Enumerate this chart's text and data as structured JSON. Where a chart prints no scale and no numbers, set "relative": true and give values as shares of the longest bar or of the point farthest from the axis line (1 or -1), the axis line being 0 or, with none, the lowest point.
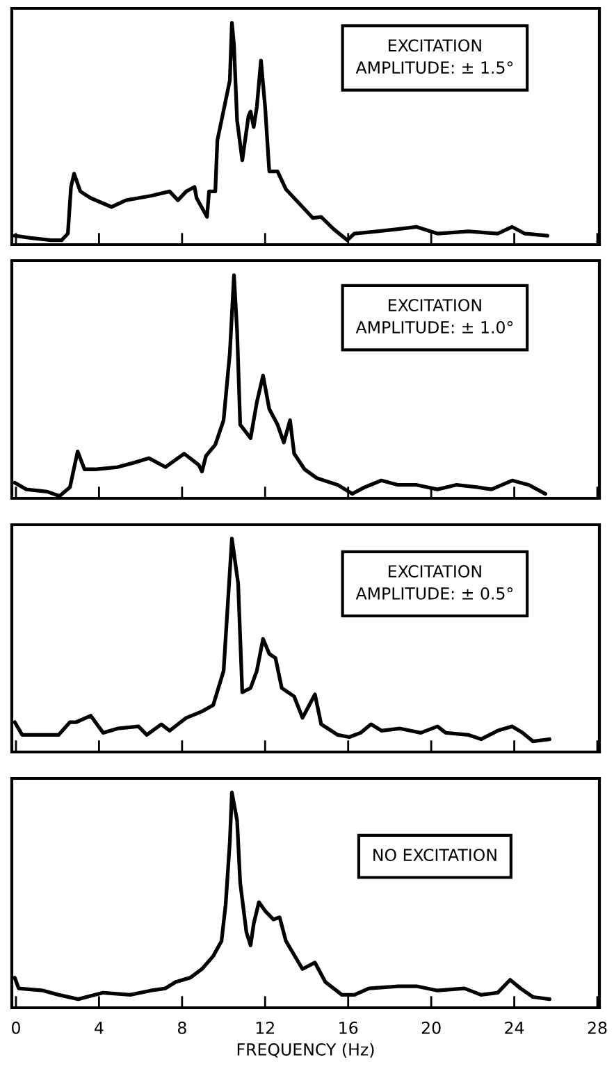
{
  "chart_data": [
    {
      "type": "line",
      "relative": true,
      "xlim": [
        -0.2,
        28.1
      ],
      "xticks": [
        0,
        4,
        8,
        12,
        16,
        20,
        24,
        28
      ],
      "tick_labels": false,
      "annotations": [
        "EXCITATION\nAMPLITUDE: ± 1.5°"
      ],
      "series": [
        {
          "color": "#000000",
          "x": [
            -0.06,
            0.7,
            1.7,
            2.2,
            2.5,
            2.65,
            2.8,
            3.1,
            3.6,
            4.6,
            5.3,
            6.5,
            7.4,
            7.8,
            8.2,
            8.6,
            8.7,
            9.2,
            9.3,
            9.6,
            9.7,
            10.1,
            10.3,
            10.4,
            10.5,
            10.65,
            10.9,
            11.2,
            11.3,
            11.45,
            11.6,
            11.8,
            12.0,
            12.2,
            12.6,
            13.0,
            13.8,
            14.3,
            14.7,
            15.3,
            15.96,
            16.3,
            17.4,
            18.4,
            19.3,
            20.3,
            21.8,
            23.2,
            23.9,
            24.5,
            25.6
          ],
          "values": [
            0.04,
            0.03,
            0.02,
            0.02,
            0.05,
            0.26,
            0.32,
            0.24,
            0.21,
            0.17,
            0.2,
            0.22,
            0.24,
            0.2,
            0.24,
            0.26,
            0.21,
            0.125,
            0.24,
            0.24,
            0.47,
            0.65,
            0.74,
            1.0,
            0.9,
            0.56,
            0.38,
            0.58,
            0.6,
            0.53,
            0.62,
            0.83,
            0.62,
            0.33,
            0.33,
            0.25,
            0.17,
            0.12,
            0.125,
            0.07,
            0.02,
            0.05,
            0.06,
            0.07,
            0.08,
            0.05,
            0.06,
            0.05,
            0.08,
            0.05,
            0.04
          ]
        }
      ]
    },
    {
      "type": "line",
      "relative": true,
      "xlim": [
        -0.2,
        28.1
      ],
      "xticks": [
        0,
        4,
        8,
        12,
        16,
        20,
        24,
        28
      ],
      "tick_labels": false,
      "annotations": [
        "EXCITATION\nAMPLITUDE: ± 1.0°"
      ],
      "series": [
        {
          "color": "#000000",
          "x": [
            -0.06,
            0.5,
            1.5,
            2.1,
            2.6,
            2.97,
            3.3,
            3.8,
            4.9,
            5.7,
            6.4,
            7.2,
            8.1,
            8.8,
            8.96,
            9.15,
            9.6,
            10.0,
            10.3,
            10.5,
            10.65,
            10.8,
            11.3,
            11.6,
            11.9,
            12.2,
            12.6,
            12.9,
            13.2,
            13.4,
            13.9,
            14.5,
            15.5,
            16.2,
            16.8,
            17.6,
            18.4,
            19.3,
            20.3,
            21.2,
            22.2,
            22.9,
            23.9,
            24.7,
            25.5
          ],
          "values": [
            0.07,
            0.04,
            0.03,
            0.01,
            0.05,
            0.21,
            0.13,
            0.13,
            0.14,
            0.16,
            0.18,
            0.14,
            0.2,
            0.15,
            0.12,
            0.19,
            0.24,
            0.35,
            0.65,
            1.0,
            0.75,
            0.33,
            0.27,
            0.43,
            0.55,
            0.4,
            0.33,
            0.25,
            0.35,
            0.2,
            0.13,
            0.09,
            0.06,
            0.02,
            0.05,
            0.08,
            0.06,
            0.06,
            0.04,
            0.06,
            0.05,
            0.04,
            0.08,
            0.06,
            0.02
          ]
        }
      ]
    },
    {
      "type": "line",
      "relative": true,
      "xlim": [
        -0.2,
        28.1
      ],
      "xticks": [
        0,
        4,
        8,
        12,
        16,
        20,
        24,
        28
      ],
      "tick_labels": false,
      "annotations": [
        "EXCITATION\nAMPLITUDE: ± 0.5°"
      ],
      "series": [
        {
          "color": "#000000",
          "x": [
            -0.06,
            0.3,
            2.05,
            2.6,
            2.9,
            3.6,
            4.2,
            4.9,
            5.9,
            6.3,
            7.0,
            7.4,
            8.2,
            8.96,
            9.5,
            10.0,
            10.2,
            10.4,
            10.7,
            10.9,
            11.3,
            11.6,
            11.9,
            12.2,
            12.5,
            12.8,
            13.4,
            13.8,
            14.4,
            14.7,
            15.5,
            16.05,
            16.6,
            17.1,
            17.6,
            18.5,
            19.5,
            20.3,
            20.7,
            21.8,
            22.4,
            23.2,
            23.9,
            24.4,
            24.9,
            25.7
          ],
          "values": [
            0.14,
            0.08,
            0.08,
            0.14,
            0.14,
            0.17,
            0.09,
            0.11,
            0.12,
            0.08,
            0.13,
            0.1,
            0.16,
            0.19,
            0.22,
            0.38,
            0.69,
            1.0,
            0.79,
            0.28,
            0.3,
            0.38,
            0.53,
            0.46,
            0.44,
            0.3,
            0.26,
            0.16,
            0.27,
            0.13,
            0.08,
            0.07,
            0.09,
            0.13,
            0.1,
            0.11,
            0.09,
            0.12,
            0.09,
            0.08,
            0.06,
            0.1,
            0.12,
            0.09,
            0.05,
            0.06
          ]
        }
      ]
    },
    {
      "type": "line",
      "relative": true,
      "xlim": [
        -0.2,
        28.1
      ],
      "xticks": [
        0,
        4,
        8,
        12,
        16,
        20,
        24,
        28
      ],
      "tick_labels": "x",
      "xlabel": "FREQUENCY (Hz)",
      "annotations": [
        "NO EXCITATION"
      ],
      "series": [
        {
          "color": "#000000",
          "x": [
            -0.06,
            0.13,
            1.3,
            2.05,
            3.0,
            4.2,
            5.5,
            6.5,
            7.2,
            7.7,
            8.4,
            8.96,
            9.5,
            9.9,
            10.1,
            10.3,
            10.4,
            10.65,
            10.8,
            11.1,
            11.3,
            11.45,
            11.7,
            12.0,
            12.4,
            12.7,
            13.0,
            13.8,
            14.4,
            14.9,
            15.7,
            16.3,
            17.0,
            18.4,
            19.3,
            20.3,
            21.6,
            22.4,
            23.2,
            23.8,
            24.3,
            24.9,
            25.7
          ],
          "values": [
            0.14,
            0.09,
            0.08,
            0.06,
            0.04,
            0.07,
            0.06,
            0.08,
            0.09,
            0.12,
            0.14,
            0.18,
            0.24,
            0.31,
            0.48,
            0.77,
            1.0,
            0.87,
            0.58,
            0.35,
            0.29,
            0.39,
            0.49,
            0.45,
            0.41,
            0.42,
            0.31,
            0.18,
            0.21,
            0.12,
            0.06,
            0.06,
            0.09,
            0.1,
            0.1,
            0.08,
            0.09,
            0.06,
            0.07,
            0.13,
            0.09,
            0.05,
            0.04
          ]
        }
      ]
    }
  ]
}
